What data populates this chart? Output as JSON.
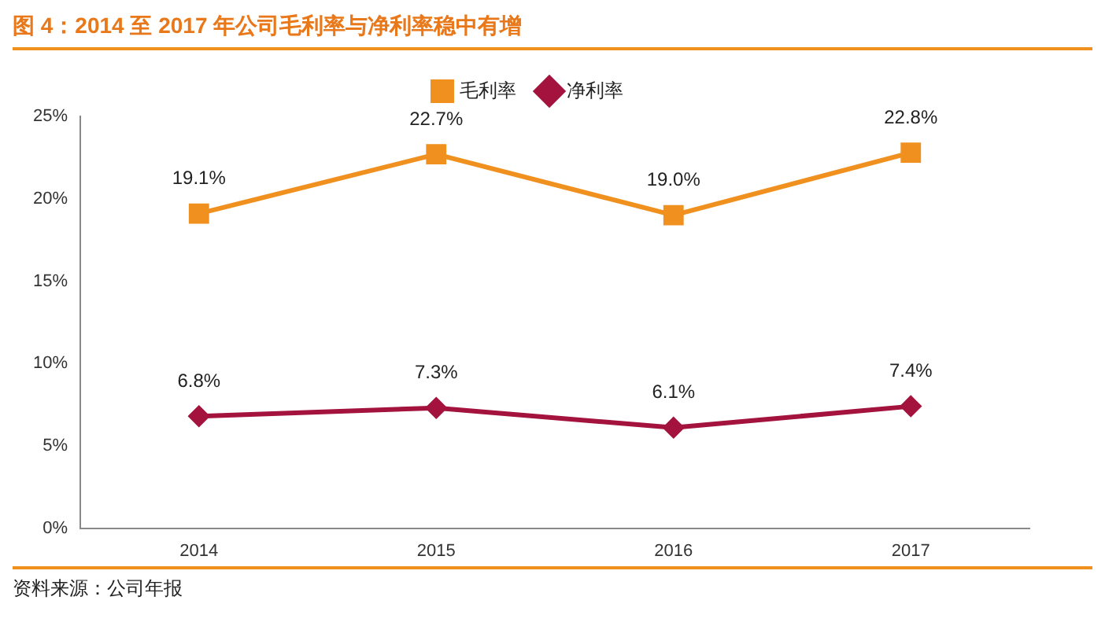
{
  "chart_data": {
    "type": "line",
    "title": "图 4：2014 至 2017 年公司毛利率与净利率稳中有增",
    "categories": [
      "2014",
      "2015",
      "2016",
      "2017"
    ],
    "series": [
      {
        "name": "毛利率",
        "color": "#f0901e",
        "values": [
          19.1,
          22.7,
          19.0,
          22.8
        ],
        "value_labels": [
          "19.1%",
          "22.7%",
          "19.0%",
          "22.8%"
        ],
        "marker": "square"
      },
      {
        "name": "净利率",
        "color": "#a3133d",
        "values": [
          6.8,
          7.3,
          6.1,
          7.4
        ],
        "value_labels": [
          "6.8%",
          "7.3%",
          "6.1%",
          "7.4%"
        ],
        "marker": "diamond"
      }
    ],
    "ylim": [
      0,
      25
    ],
    "yticks": [
      {
        "value": 0,
        "label": "0%"
      },
      {
        "value": 5,
        "label": "5%"
      },
      {
        "value": 10,
        "label": "10%"
      },
      {
        "value": 15,
        "label": "15%"
      },
      {
        "value": 20,
        "label": "20%"
      },
      {
        "value": 25,
        "label": "25%"
      }
    ],
    "grid": false,
    "legend": "top",
    "line_style": "solid",
    "annotations": [
      "资料来源：公司年报"
    ]
  }
}
